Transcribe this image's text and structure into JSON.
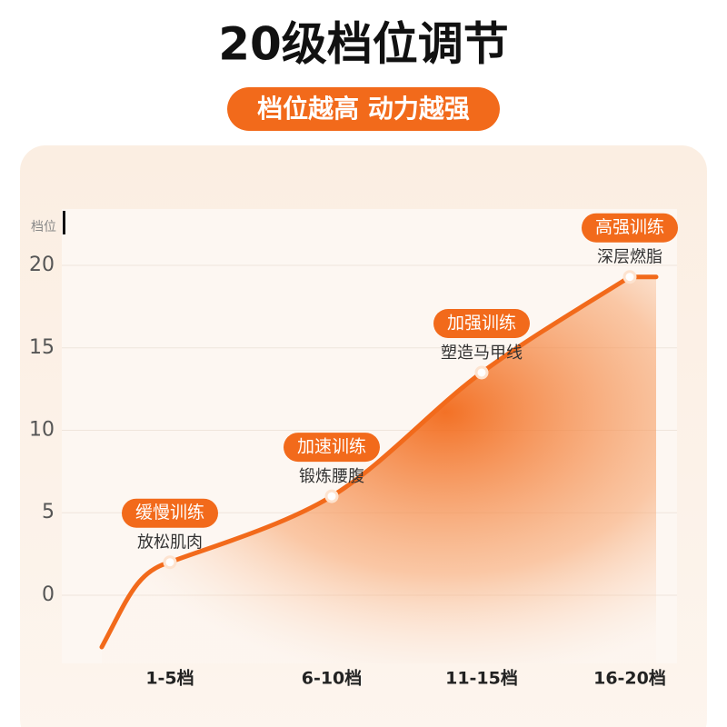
{
  "chart_data": {
    "type": "line",
    "title": "20级档位调节",
    "subtitle": "档位越高 动力越强",
    "y_label": "档位",
    "categories": [
      "1-5档",
      "6-10档",
      "11-15档",
      "16-20档"
    ],
    "values": [
      2,
      6,
      13.5,
      19.3
    ],
    "color": "#f26a1b",
    "annotations": [
      {
        "label": "缓慢训练",
        "text": "放松肌肉"
      },
      {
        "label": "加速训练",
        "text": "锻炼腰腹"
      },
      {
        "label": "加强训练",
        "text": "塑造马甲线"
      },
      {
        "label": "高强训练",
        "text": "深层燃脂"
      }
    ],
    "ylim": [
      -4.1,
      23.4
    ],
    "yticks": [
      0,
      5,
      10,
      15,
      20
    ],
    "grid": true
  }
}
